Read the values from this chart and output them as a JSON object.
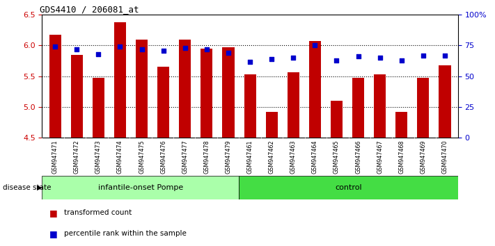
{
  "title": "GDS4410 / 206081_at",
  "samples": [
    "GSM947471",
    "GSM947472",
    "GSM947473",
    "GSM947474",
    "GSM947475",
    "GSM947476",
    "GSM947477",
    "GSM947478",
    "GSM947479",
    "GSM947461",
    "GSM947462",
    "GSM947463",
    "GSM947464",
    "GSM947465",
    "GSM947466",
    "GSM947467",
    "GSM947468",
    "GSM947469",
    "GSM947470"
  ],
  "groups": [
    "infantile-onset Pompe",
    "control"
  ],
  "group_sizes": [
    9,
    10
  ],
  "red_values": [
    6.17,
    5.85,
    5.47,
    6.38,
    6.1,
    5.65,
    6.1,
    5.95,
    5.97,
    5.53,
    4.92,
    5.57,
    6.07,
    5.1,
    5.48,
    5.53,
    4.92,
    5.48,
    5.68
  ],
  "blue_values": [
    74,
    72,
    68,
    74,
    72,
    71,
    73,
    72,
    69,
    62,
    64,
    65,
    75,
    63,
    66,
    65,
    63,
    67,
    67
  ],
  "y_min": 4.5,
  "y_max": 6.5,
  "y_ticks": [
    4.5,
    5.0,
    5.5,
    6.0,
    6.5
  ],
  "y2_ticks": [
    0,
    25,
    50,
    75,
    100
  ],
  "y2_labels": [
    "0",
    "25",
    "50",
    "75",
    "100%"
  ],
  "bar_color": "#C00000",
  "dot_color": "#0000CC",
  "group1_color": "#AAFFAA",
  "group2_color": "#44DD44",
  "xtick_bg_color": "#CCCCCC",
  "tick_color_left": "#CC0000",
  "tick_color_right": "#0000CC",
  "bar_width": 0.55,
  "baseline": 4.5,
  "legend_items": [
    "transformed count",
    "percentile rank within the sample"
  ],
  "disease_state_label": "disease state"
}
